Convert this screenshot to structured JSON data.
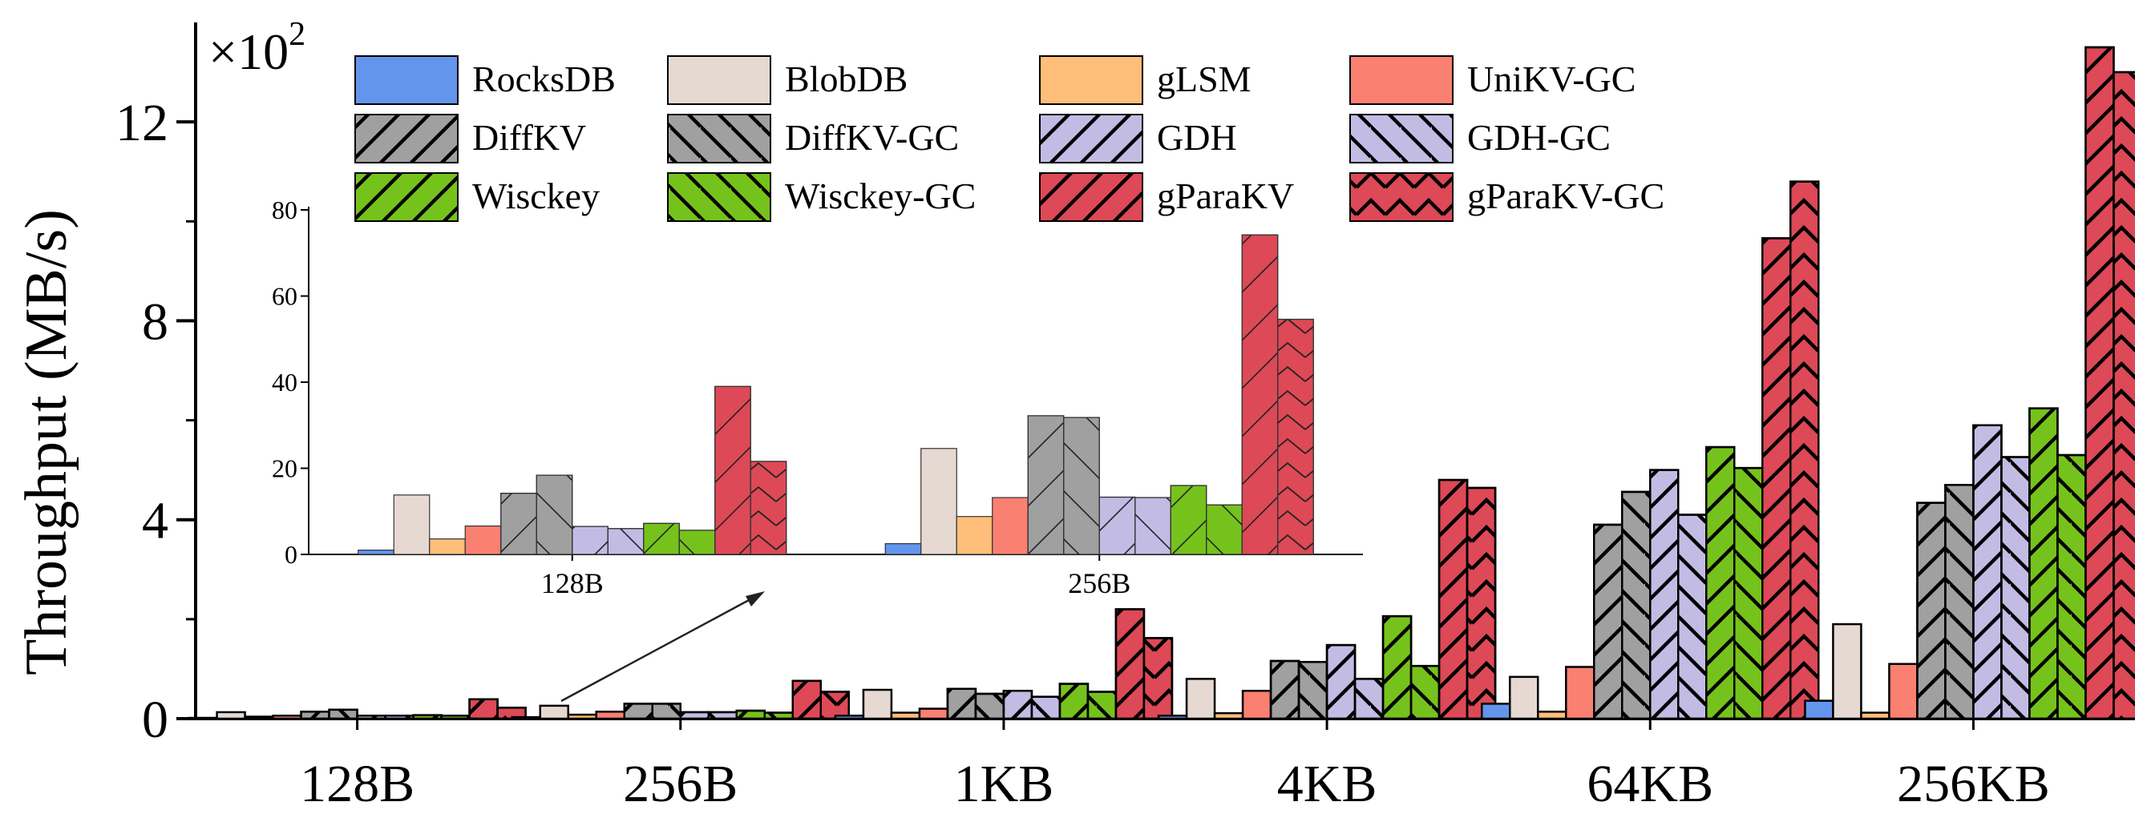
{
  "chart_data": {
    "type": "bar",
    "ylabel": "Throughput (MB/s)",
    "y_multiplier_base": "×10",
    "y_multiplier_exp": "2",
    "ylim": [
      0,
      14
    ],
    "yticks": [
      0,
      4,
      8,
      12
    ],
    "categories": [
      "128B",
      "256B",
      "1KB",
      "4KB",
      "64KB",
      "256KB"
    ],
    "series": [
      {
        "name": "RocksDB",
        "color": "#6495ED",
        "hatch": "none",
        "values": [
          0.01,
          0.03,
          0.06,
          0.06,
          0.3,
          0.36
        ]
      },
      {
        "name": "BlobDB",
        "color": "#E6D9D1",
        "hatch": "none",
        "values": [
          0.13,
          0.26,
          0.58,
          0.8,
          0.84,
          1.9
        ]
      },
      {
        "name": "gLSM",
        "color": "#FFBE79",
        "hatch": "none",
        "values": [
          0.04,
          0.08,
          0.12,
          0.11,
          0.14,
          0.12
        ]
      },
      {
        "name": "UniKV-GC",
        "color": "#FA8072",
        "hatch": "none",
        "values": [
          0.06,
          0.14,
          0.2,
          0.56,
          1.04,
          1.1
        ]
      },
      {
        "name": "DiffKV",
        "color": "#A0A0A0",
        "hatch": "forward",
        "values": [
          0.14,
          0.3,
          0.6,
          1.16,
          3.9,
          4.34
        ]
      },
      {
        "name": "DiffKV-GC",
        "color": "#A0A0A0",
        "hatch": "back",
        "values": [
          0.18,
          0.3,
          0.5,
          1.14,
          4.56,
          4.7
        ]
      },
      {
        "name": "GDH",
        "color": "#C2BCE4",
        "hatch": "forward",
        "values": [
          0.06,
          0.13,
          0.56,
          1.48,
          5.0,
          5.9
        ]
      },
      {
        "name": "GDH-GC",
        "color": "#C2BCE4",
        "hatch": "back",
        "values": [
          0.06,
          0.13,
          0.44,
          0.8,
          4.1,
          5.26
        ]
      },
      {
        "name": "Wisckey",
        "color": "#76C21C",
        "hatch": "forward",
        "values": [
          0.07,
          0.16,
          0.7,
          2.06,
          5.46,
          6.24
        ]
      },
      {
        "name": "Wisckey-GC",
        "color": "#76C21C",
        "hatch": "back",
        "values": [
          0.06,
          0.12,
          0.54,
          1.06,
          5.04,
          5.3
        ]
      },
      {
        "name": "gParaKV",
        "color": "#DD4956",
        "hatch": "forward",
        "values": [
          0.39,
          0.76,
          2.2,
          4.8,
          9.66,
          13.5
        ]
      },
      {
        "name": "gParaKV-GC",
        "color": "#DD4956",
        "hatch": "back-chevron",
        "values": [
          0.22,
          0.54,
          1.62,
          4.64,
          10.8,
          13.0
        ]
      }
    ],
    "inset": {
      "categories": [
        "128B",
        "256B"
      ],
      "yticks": [
        0,
        20,
        40,
        60,
        80
      ],
      "ylim": [
        0,
        80
      ],
      "values": [
        [
          1.0,
          2.5
        ],
        [
          13.8,
          24.6
        ],
        [
          3.6,
          8.8
        ],
        [
          6.6,
          13.2
        ],
        [
          14.2,
          32.2
        ],
        [
          18.4,
          31.8
        ],
        [
          6.5,
          13.3
        ],
        [
          6.0,
          13.2
        ],
        [
          7.2,
          16.0
        ],
        [
          5.6,
          11.5
        ],
        [
          39.0,
          74.2
        ],
        [
          21.6,
          54.6
        ]
      ]
    },
    "legend_position": "top, 4 columns x 3 rows"
  }
}
